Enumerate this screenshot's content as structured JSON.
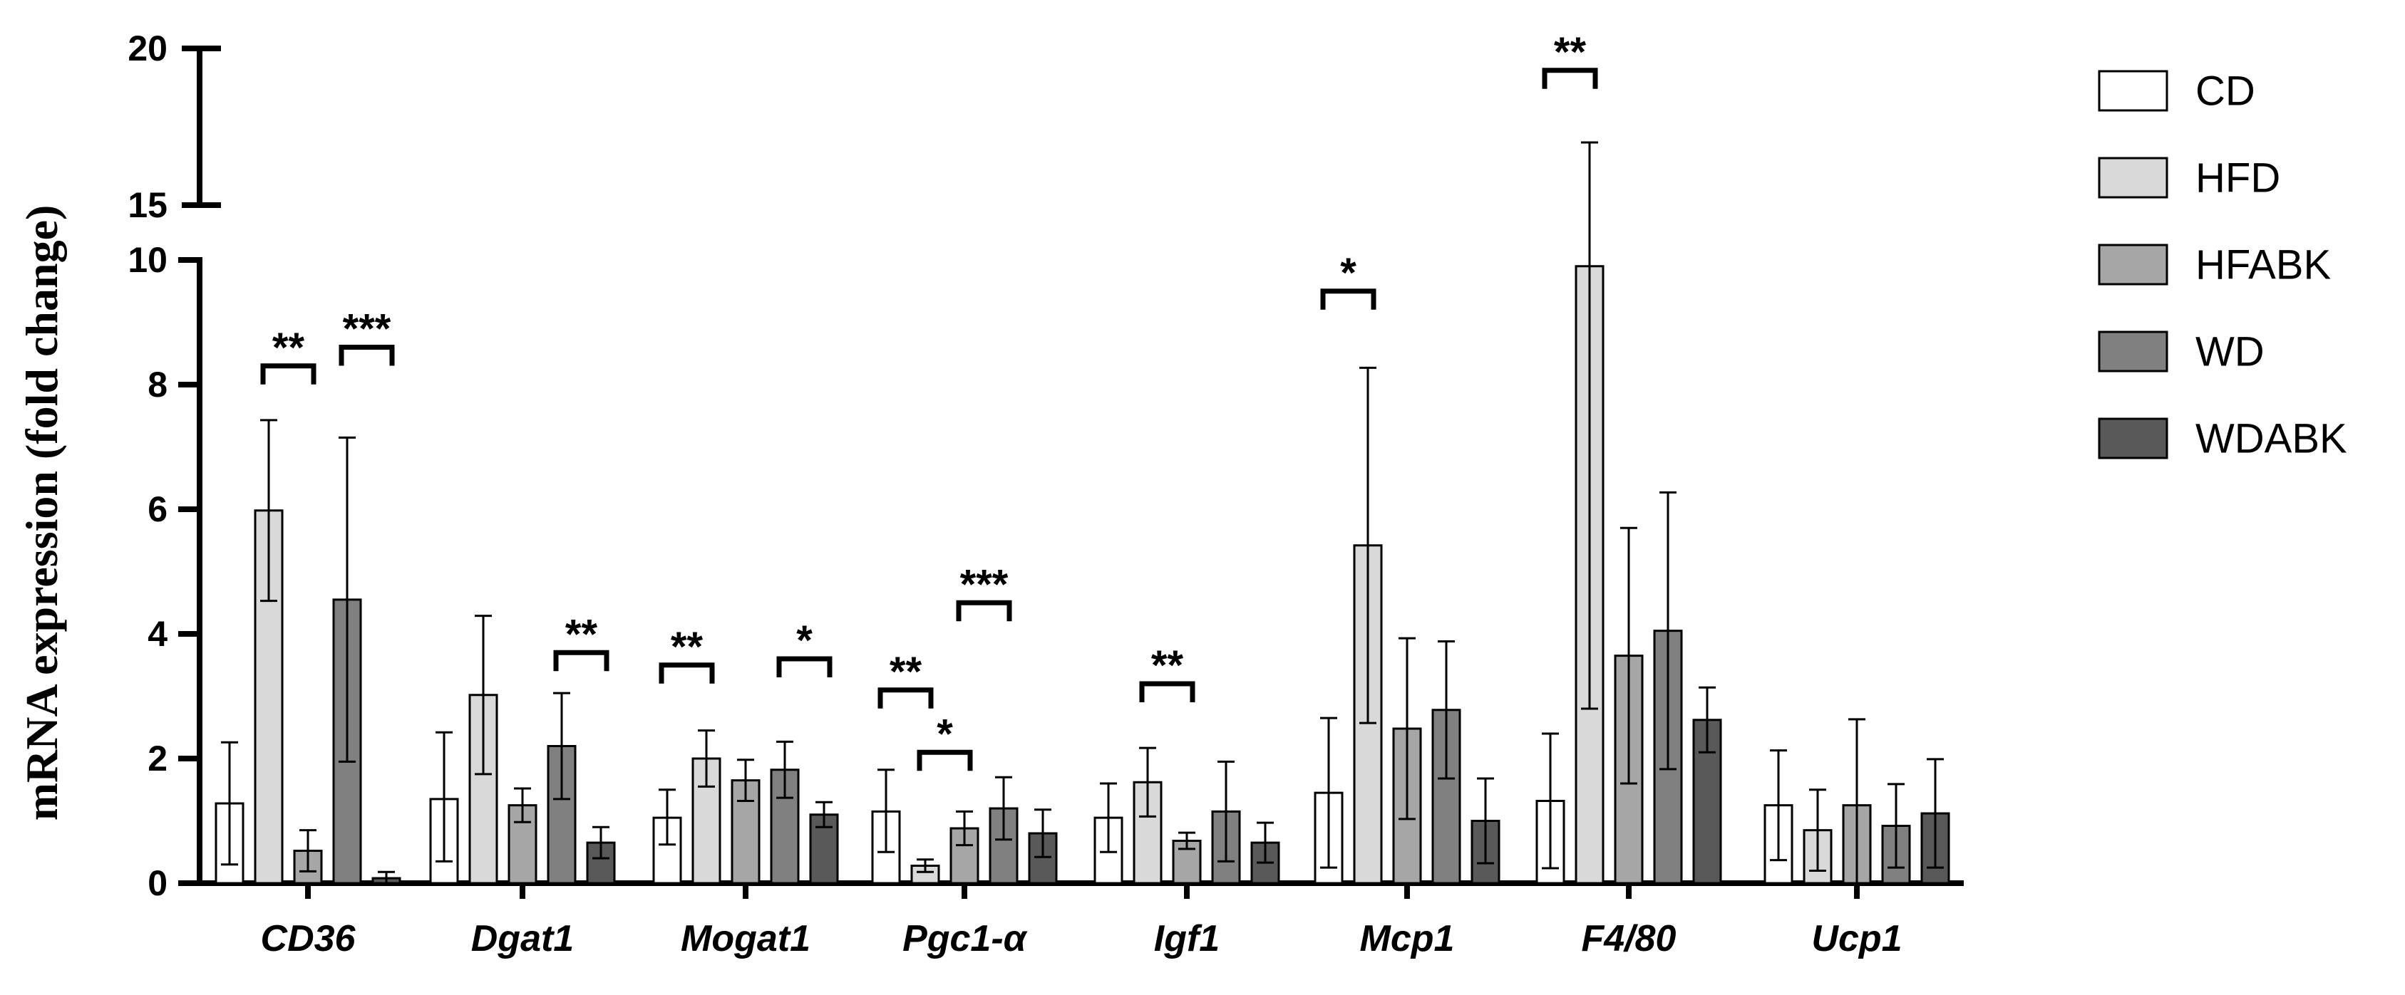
{
  "chart_data": {
    "type": "bar",
    "title": "",
    "xlabel": "",
    "ylabel": "mRNA expression (fold change)",
    "categories": [
      "CD36",
      "Dgat1",
      "Mogat1",
      "Pgc1-α",
      "Igf1",
      "Mcp1",
      "F4/80",
      "Ucp1"
    ],
    "series": [
      {
        "name": "CD",
        "color": "#ffffff",
        "values": [
          1.28,
          1.35,
          1.05,
          1.15,
          1.05,
          1.45,
          1.32,
          1.25
        ],
        "err_low": [
          0.98,
          1.0,
          0.43,
          0.65,
          0.55,
          1.2,
          1.08,
          0.88
        ],
        "err_high": [
          0.98,
          1.07,
          0.45,
          0.67,
          0.55,
          1.2,
          1.08,
          0.88
        ]
      },
      {
        "name": "HFD",
        "color": "#d9d9d9",
        "values": [
          5.98,
          3.02,
          2.0,
          0.28,
          1.62,
          5.42,
          9.9,
          0.85
        ],
        "err_low": [
          1.45,
          1.27,
          0.45,
          0.1,
          0.55,
          2.85,
          7.1,
          0.65
        ],
        "err_high": [
          1.45,
          1.27,
          0.45,
          0.1,
          0.55,
          2.85,
          7.1,
          0.65
        ]
      },
      {
        "name": "HFABK",
        "color": "#a6a6a6",
        "values": [
          0.52,
          1.25,
          1.65,
          0.88,
          0.68,
          2.48,
          3.65,
          1.25
        ],
        "err_low": [
          0.33,
          0.27,
          0.33,
          0.27,
          0.13,
          1.45,
          2.05,
          1.38
        ],
        "err_high": [
          0.33,
          0.27,
          0.33,
          0.27,
          0.13,
          1.45,
          2.05,
          1.38
        ]
      },
      {
        "name": "WD",
        "color": "#808080",
        "values": [
          4.55,
          2.2,
          1.82,
          1.2,
          1.15,
          2.78,
          4.05,
          0.92
        ],
        "err_low": [
          2.6,
          0.85,
          0.45,
          0.5,
          0.8,
          1.1,
          2.22,
          0.67
        ],
        "err_high": [
          2.6,
          0.85,
          0.45,
          0.5,
          0.8,
          1.1,
          2.22,
          0.67
        ]
      },
      {
        "name": "WDABK",
        "color": "#595959",
        "values": [
          0.08,
          0.65,
          1.1,
          0.8,
          0.65,
          1.0,
          2.62,
          1.12
        ],
        "err_low": [
          0.08,
          0.25,
          0.2,
          0.38,
          0.32,
          0.68,
          0.52,
          0.87
        ],
        "err_high": [
          0.1,
          0.25,
          0.2,
          0.38,
          0.32,
          0.68,
          0.52,
          0.87
        ]
      }
    ],
    "y_axis": {
      "lower_segment": [
        0,
        10
      ],
      "upper_segment": [
        15,
        20
      ],
      "lower_ticks": [
        "0",
        "2",
        "4",
        "6",
        "8",
        "10"
      ],
      "upper_ticks": [
        "15",
        "20"
      ]
    },
    "legend": {
      "position": "right",
      "entries": [
        "CD",
        "HFD",
        "HFABK",
        "WD",
        "WDABK"
      ]
    },
    "significance": [
      {
        "category": 0,
        "from": 1,
        "to": 2,
        "y": 8.3,
        "label": "**"
      },
      {
        "category": 0,
        "from": 3,
        "to": 4,
        "y": 8.6,
        "label": "***"
      },
      {
        "category": 1,
        "from": 3,
        "to": 4,
        "y": 3.7,
        "label": "**"
      },
      {
        "category": 2,
        "from": 0,
        "to": 1,
        "y": 3.5,
        "label": "**"
      },
      {
        "category": 2,
        "from": 3,
        "to": 4,
        "y": 3.6,
        "label": "*"
      },
      {
        "category": 3,
        "from": 0,
        "to": 1,
        "y": 3.1,
        "label": "**"
      },
      {
        "category": 3,
        "from": 1,
        "to": 2,
        "y": 2.1,
        "label": "*"
      },
      {
        "category": 3,
        "from": 2,
        "to": 3,
        "y": 4.5,
        "label": "***"
      },
      {
        "category": 4,
        "from": 1,
        "to": 2,
        "y": 3.2,
        "label": "**"
      },
      {
        "category": 5,
        "from": 0,
        "to": 1,
        "y": 9.5,
        "label": "*"
      },
      {
        "category": 6,
        "from": 0,
        "to": 1,
        "y": 19.3,
        "label": "**"
      }
    ]
  }
}
